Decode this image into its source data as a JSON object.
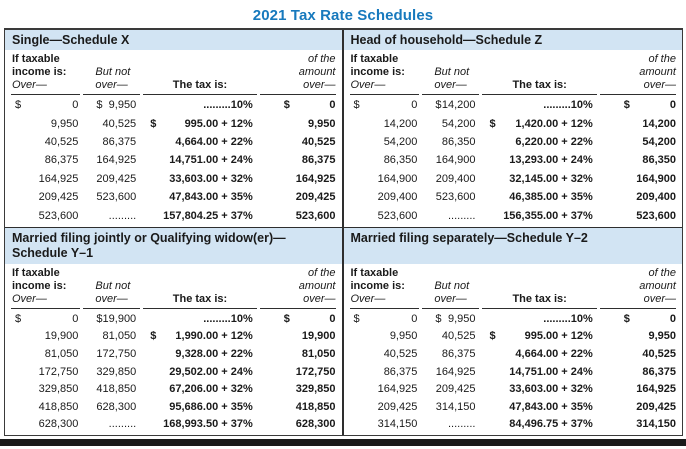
{
  "title": "2021 Tax Rate Schedules",
  "colors": {
    "title_blue": "#1779bd",
    "band_blue": "#d2e4f3",
    "rule_dark": "#3a3a3a",
    "bar_black": "#1a1a1a"
  },
  "column_headers": {
    "income_bold_1": "If taxable",
    "income_bold_2": "income is:",
    "over": "Over—",
    "but_not_1": "But not",
    "but_not_2": "over—",
    "tax_is": "The tax is:",
    "of_the_1": "of the",
    "of_the_2": "amount",
    "of_the_3": "over—"
  },
  "schedules": [
    {
      "title": "Single—Schedule X",
      "rows": [
        {
          "over_sym": "$",
          "over": "0",
          "butnot_sym": "$",
          "butnot": "9,950",
          "tax_sym": "",
          "tax": ".........10%",
          "amt_sym": "$",
          "amt": "0"
        },
        {
          "over_sym": "",
          "over": "9,950",
          "butnot_sym": "",
          "butnot": "40,525",
          "tax_sym": "$",
          "tax": "995.00 + 12%",
          "amt_sym": "",
          "amt": "9,950"
        },
        {
          "over_sym": "",
          "over": "40,525",
          "butnot_sym": "",
          "butnot": "86,375",
          "tax_sym": "",
          "tax": "4,664.00 + 22%",
          "amt_sym": "",
          "amt": "40,525"
        },
        {
          "over_sym": "",
          "over": "86,375",
          "butnot_sym": "",
          "butnot": "164,925",
          "tax_sym": "",
          "tax": "14,751.00 + 24%",
          "amt_sym": "",
          "amt": "86,375"
        },
        {
          "over_sym": "",
          "over": "164,925",
          "butnot_sym": "",
          "butnot": "209,425",
          "tax_sym": "",
          "tax": "33,603.00 + 32%",
          "amt_sym": "",
          "amt": "164,925"
        },
        {
          "over_sym": "",
          "over": "209,425",
          "butnot_sym": "",
          "butnot": "523,600",
          "tax_sym": "",
          "tax": "47,843.00 + 35%",
          "amt_sym": "",
          "amt": "209,425"
        },
        {
          "over_sym": "",
          "over": "523,600",
          "butnot_sym": "",
          "butnot": ".........",
          "tax_sym": "",
          "tax": "157,804.25 + 37%",
          "amt_sym": "",
          "amt": "523,600"
        }
      ]
    },
    {
      "title": "Head of household—Schedule Z",
      "rows": [
        {
          "over_sym": "$",
          "over": "0",
          "butnot_sym": "$",
          "butnot": "14,200",
          "tax_sym": "",
          "tax": ".........10%",
          "amt_sym": "$",
          "amt": "0"
        },
        {
          "over_sym": "",
          "over": "14,200",
          "butnot_sym": "",
          "butnot": "54,200",
          "tax_sym": "$",
          "tax": "1,420.00 + 12%",
          "amt_sym": "",
          "amt": "14,200"
        },
        {
          "over_sym": "",
          "over": "54,200",
          "butnot_sym": "",
          "butnot": "86,350",
          "tax_sym": "",
          "tax": "6,220.00 + 22%",
          "amt_sym": "",
          "amt": "54,200"
        },
        {
          "over_sym": "",
          "over": "86,350",
          "butnot_sym": "",
          "butnot": "164,900",
          "tax_sym": "",
          "tax": "13,293.00 + 24%",
          "amt_sym": "",
          "amt": "86,350"
        },
        {
          "over_sym": "",
          "over": "164,900",
          "butnot_sym": "",
          "butnot": "209,400",
          "tax_sym": "",
          "tax": "32,145.00 + 32%",
          "amt_sym": "",
          "amt": "164,900"
        },
        {
          "over_sym": "",
          "over": "209,400",
          "butnot_sym": "",
          "butnot": "523,600",
          "tax_sym": "",
          "tax": "46,385.00 + 35%",
          "amt_sym": "",
          "amt": "209,400"
        },
        {
          "over_sym": "",
          "over": "523,600",
          "butnot_sym": "",
          "butnot": ".........",
          "tax_sym": "",
          "tax": "156,355.00 + 37%",
          "amt_sym": "",
          "amt": "523,600"
        }
      ]
    },
    {
      "title": "Married filing jointly or Qualifying widow(er)—\nSchedule Y–1",
      "rows": [
        {
          "over_sym": "$",
          "over": "0",
          "butnot_sym": "$",
          "butnot": "19,900",
          "tax_sym": "",
          "tax": ".........10%",
          "amt_sym": "$",
          "amt": "0"
        },
        {
          "over_sym": "",
          "over": "19,900",
          "butnot_sym": "",
          "butnot": "81,050",
          "tax_sym": "$",
          "tax": "1,990.00 + 12%",
          "amt_sym": "",
          "amt": "19,900"
        },
        {
          "over_sym": "",
          "over": "81,050",
          "butnot_sym": "",
          "butnot": "172,750",
          "tax_sym": "",
          "tax": "9,328.00 + 22%",
          "amt_sym": "",
          "amt": "81,050"
        },
        {
          "over_sym": "",
          "over": "172,750",
          "butnot_sym": "",
          "butnot": "329,850",
          "tax_sym": "",
          "tax": "29,502.00 + 24%",
          "amt_sym": "",
          "amt": "172,750"
        },
        {
          "over_sym": "",
          "over": "329,850",
          "butnot_sym": "",
          "butnot": "418,850",
          "tax_sym": "",
          "tax": "67,206.00 + 32%",
          "amt_sym": "",
          "amt": "329,850"
        },
        {
          "over_sym": "",
          "over": "418,850",
          "butnot_sym": "",
          "butnot": "628,300",
          "tax_sym": "",
          "tax": "95,686.00 + 35%",
          "amt_sym": "",
          "amt": "418,850"
        },
        {
          "over_sym": "",
          "over": "628,300",
          "butnot_sym": "",
          "butnot": ".........",
          "tax_sym": "",
          "tax": "168,993.50 + 37%",
          "amt_sym": "",
          "amt": "628,300"
        }
      ]
    },
    {
      "title": "Married filing separately—Schedule Y–2",
      "rows": [
        {
          "over_sym": "$",
          "over": "0",
          "butnot_sym": "$",
          "butnot": "9,950",
          "tax_sym": "",
          "tax": ".........10%",
          "amt_sym": "$",
          "amt": "0"
        },
        {
          "over_sym": "",
          "over": "9,950",
          "butnot_sym": "",
          "butnot": "40,525",
          "tax_sym": "$",
          "tax": "995.00 + 12%",
          "amt_sym": "",
          "amt": "9,950"
        },
        {
          "over_sym": "",
          "over": "40,525",
          "butnot_sym": "",
          "butnot": "86,375",
          "tax_sym": "",
          "tax": "4,664.00 + 22%",
          "amt_sym": "",
          "amt": "40,525"
        },
        {
          "over_sym": "",
          "over": "86,375",
          "butnot_sym": "",
          "butnot": "164,925",
          "tax_sym": "",
          "tax": "14,751.00 + 24%",
          "amt_sym": "",
          "amt": "86,375"
        },
        {
          "over_sym": "",
          "over": "164,925",
          "butnot_sym": "",
          "butnot": "209,425",
          "tax_sym": "",
          "tax": "33,603.00 + 32%",
          "amt_sym": "",
          "amt": "164,925"
        },
        {
          "over_sym": "",
          "over": "209,425",
          "butnot_sym": "",
          "butnot": "314,150",
          "tax_sym": "",
          "tax": "47,843.00 + 35%",
          "amt_sym": "",
          "amt": "209,425"
        },
        {
          "over_sym": "",
          "over": "314,150",
          "butnot_sym": "",
          "butnot": ".........",
          "tax_sym": "",
          "tax": "84,496.75 + 37%",
          "amt_sym": "",
          "amt": "314,150"
        }
      ]
    }
  ]
}
